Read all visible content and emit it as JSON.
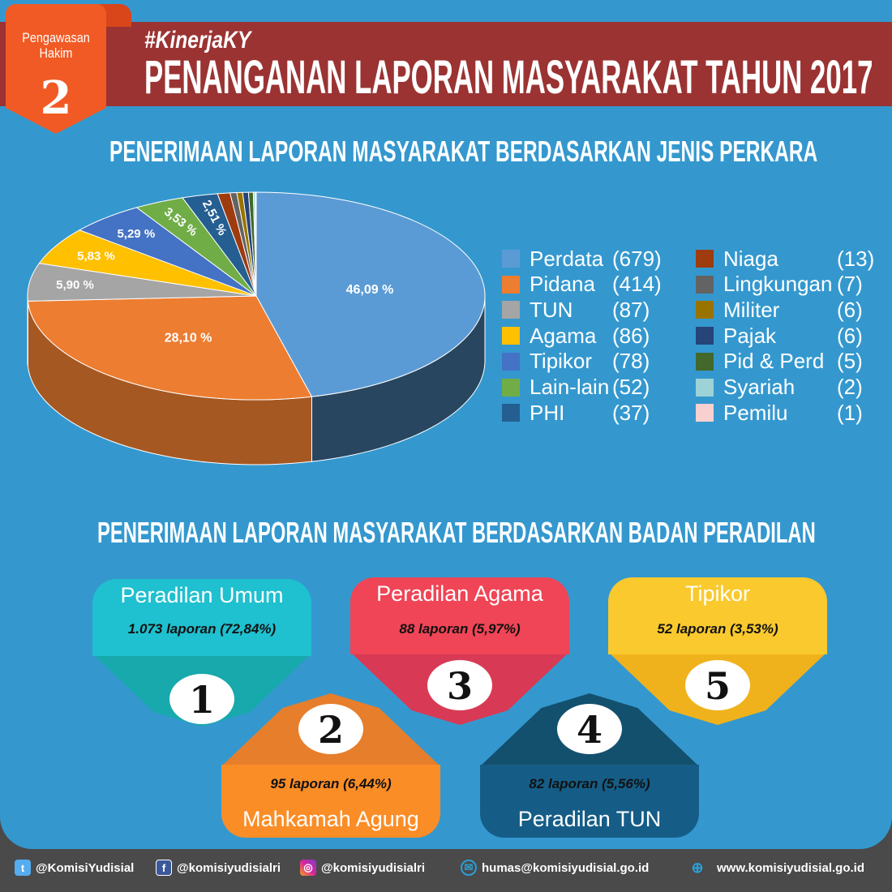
{
  "ribbon": {
    "line1": "Pengawasan",
    "line2": "Hakim",
    "number": "2"
  },
  "header": {
    "hashtag": "#KinerjaKY",
    "title": "PENANGANAN LAPORAN MASYARAKAT TAHUN 2017"
  },
  "section1_title": "PENERIMAAN LAPORAN MASYARAKAT BERDASARKAN JENIS PERKARA",
  "section2_title": "PENERIMAAN LAPORAN MASYARAKAT BERDASARKAN BADAN PERADILAN",
  "chart_data": {
    "type": "pie",
    "title": "PENERIMAAN LAPORAN MASYARAKAT BERDASARKAN JENIS PERKARA",
    "legend_position": "right",
    "slices": [
      {
        "label": "Perdata",
        "value": 679,
        "count_text": "(679)",
        "pct_label": "46,09 %",
        "color": "#5b9bd5"
      },
      {
        "label": "Pidana",
        "value": 414,
        "count_text": "(414)",
        "pct_label": "28,10 %",
        "color": "#ed7d31"
      },
      {
        "label": "TUN",
        "value": 87,
        "count_text": "(87)",
        "pct_label": "5,90 %",
        "color": "#a5a5a5"
      },
      {
        "label": "Agama",
        "value": 86,
        "count_text": "(86)",
        "pct_label": "5,83 %",
        "color": "#ffc000"
      },
      {
        "label": "Tipikor",
        "value": 78,
        "count_text": "(78)",
        "pct_label": "5,29 %",
        "color": "#4472c4"
      },
      {
        "label": "Lain-lain",
        "value": 52,
        "count_text": "(52)",
        "pct_label": "3,53 %",
        "color": "#70ad47"
      },
      {
        "label": "PHI",
        "value": 37,
        "count_text": "(37)",
        "pct_label": "2,51 %",
        "color": "#255e91"
      },
      {
        "label": "Niaga",
        "value": 13,
        "count_text": "(13)",
        "color": "#9e3b0f"
      },
      {
        "label": "Lingkungan",
        "value": 7,
        "count_text": "(7)",
        "color": "#636363"
      },
      {
        "label": "Militer",
        "value": 6,
        "count_text": "(6)",
        "color": "#997300"
      },
      {
        "label": "Pajak",
        "value": 6,
        "count_text": "(6)",
        "color": "#264478"
      },
      {
        "label": "Pid & Perd",
        "value": 5,
        "count_text": "(5)",
        "color": "#43682b"
      },
      {
        "label": "Syariah",
        "value": 2,
        "count_text": "(2)",
        "color": "#9dd3d6"
      },
      {
        "label": "Pemilu",
        "value": 1,
        "count_text": "(1)",
        "color": "#f9d0d0"
      }
    ]
  },
  "cards": [
    {
      "num": "1",
      "title": "Peradilan Umum",
      "value": "1.073 laporan (72,84%)"
    },
    {
      "num": "2",
      "title": "Mahkamah Agung",
      "value": "95 laporan (6,44%)"
    },
    {
      "num": "3",
      "title": "Peradilan Agama",
      "value": "88 laporan (5,97%)"
    },
    {
      "num": "4",
      "title": "Peradilan TUN",
      "value": "82 laporan (5,56%)"
    },
    {
      "num": "5",
      "title": "Tipikor",
      "value": "52 laporan (3,53%)"
    }
  ],
  "footer": {
    "twitter": "@KomisiYudisial",
    "facebook": "@komisiyudisialri",
    "instagram": "@komisiyudisialri",
    "email": "humas@komisiyudisial.go.id",
    "website": "www.komisiyudisial.go.id"
  }
}
